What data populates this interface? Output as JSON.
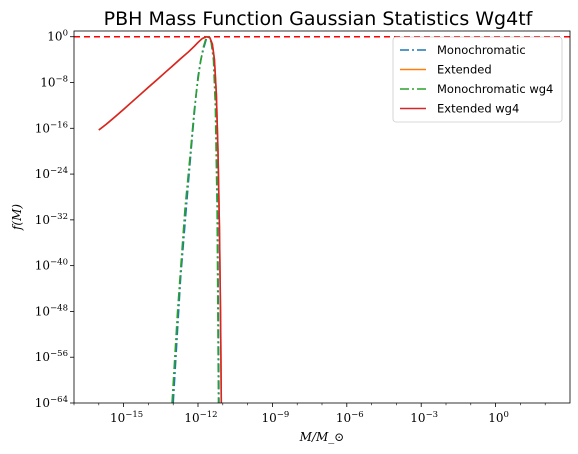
{
  "chart_data": {
    "type": "line",
    "title": "PBH Mass Function Gaussian Statistics Wg4tf",
    "xlabel": "M/M_⊙",
    "ylabel": "f(M)",
    "xscale": "log",
    "yscale": "log",
    "xlim": [
      1e-17,
      1000.0
    ],
    "ylim": [
      1e-64,
      10.0
    ],
    "xticks": [
      {
        "base": "10",
        "exp": "−15",
        "value": 1e-15
      },
      {
        "base": "10",
        "exp": "−12",
        "value": 1e-12
      },
      {
        "base": "10",
        "exp": "−9",
        "value": 1e-09
      },
      {
        "base": "10",
        "exp": "−6",
        "value": 1e-06
      },
      {
        "base": "10",
        "exp": "−3",
        "value": 0.001
      },
      {
        "base": "10",
        "exp": "0",
        "value": 1
      }
    ],
    "yticks": [
      {
        "base": "10",
        "exp": "0",
        "value": 1
      },
      {
        "base": "10",
        "exp": "−8",
        "value": 1e-08
      },
      {
        "base": "10",
        "exp": "−16",
        "value": 1e-16
      },
      {
        "base": "10",
        "exp": "−24",
        "value": 1e-24
      },
      {
        "base": "10",
        "exp": "−32",
        "value": 1e-32
      },
      {
        "base": "10",
        "exp": "−40",
        "value": 1e-40
      },
      {
        "base": "10",
        "exp": "−48",
        "value": 1e-48
      },
      {
        "base": "10",
        "exp": "−56",
        "value": 1e-56
      },
      {
        "base": "10",
        "exp": "−64",
        "value": 1e-64
      }
    ],
    "hline": {
      "y": 1,
      "color": "#ff0000",
      "style": "dashed"
    },
    "legend_position": "top-right",
    "grid": false,
    "series": [
      {
        "name": "Monochromatic",
        "color": "#1f77b4",
        "style": "dashdot",
        "x": [
          1e-13,
          2e-13,
          4e-13,
          6e-13,
          8e-13,
          1e-12,
          1.3e-12,
          1.7e-12,
          2.2e-12,
          2.8e-12,
          3.5e-12,
          4.3e-12,
          5.2e-12,
          6.2e-12,
          7e-12
        ],
        "y": [
          1e-64,
          1e-42,
          1e-26,
          1e-17,
          1e-11,
          1e-07,
          0.0001,
          0.01,
          0.5,
          1,
          0.1,
          0.0001,
          1e-12,
          1e-30,
          1e-64
        ]
      },
      {
        "name": "Extended",
        "color": "#ff7f0e",
        "style": "solid",
        "x": [
          1e-16,
          2e-16,
          5e-16,
          1e-15,
          2e-15,
          5e-15,
          1e-14,
          2e-14,
          5e-14,
          1e-13,
          2e-13,
          4e-13,
          7e-13,
          1e-12,
          1.5e-12,
          2.2e-12,
          3e-12,
          3.8e-12,
          4.6e-12,
          5.5e-12,
          6.4e-12,
          7.3e-12,
          8.1e-12,
          8.7e-12
        ],
        "y": [
          5e-17,
          5e-16,
          1.5e-14,
          2e-13,
          3e-12,
          1e-10,
          1.5e-09,
          2e-08,
          7e-07,
          1e-05,
          0.00015,
          0.002,
          0.02,
          0.1,
          0.5,
          1,
          0.7,
          0.05,
          0.0001,
          1e-10,
          1e-20,
          1e-33,
          1e-48,
          1e-64
        ]
      },
      {
        "name": "Monochromatic wg4",
        "color": "#2ca02c",
        "style": "dashdot",
        "x": [
          9e-14,
          1.5e-13,
          3e-13,
          5e-13,
          7e-13,
          9e-13,
          1.2e-12,
          1.6e-12,
          2.1e-12,
          2.7e-12,
          3.4e-12,
          4.2e-12,
          5e-12,
          5.9e-12,
          6.7e-12
        ],
        "y": [
          1e-64,
          1e-48,
          1e-30,
          1e-20,
          1e-13,
          1e-09,
          1e-05,
          0.01,
          0.5,
          1,
          0.1,
          0.0001,
          1e-12,
          1e-30,
          1e-64
        ]
      },
      {
        "name": "Extended wg4",
        "color": "#d62728",
        "style": "solid",
        "x": [
          1e-16,
          2e-16,
          5e-16,
          1e-15,
          2e-15,
          5e-15,
          1e-14,
          2e-14,
          5e-14,
          1e-13,
          2e-13,
          4e-13,
          7e-13,
          1e-12,
          1.5e-12,
          2.2e-12,
          3e-12,
          3.8e-12,
          4.6e-12,
          5.5e-12,
          6.4e-12,
          7.3e-12,
          8.1e-12,
          8.7e-12
        ],
        "y": [
          5e-17,
          5e-16,
          1.5e-14,
          2e-13,
          3e-12,
          1e-10,
          1.5e-09,
          2e-08,
          7e-07,
          1e-05,
          0.00015,
          0.002,
          0.02,
          0.1,
          0.5,
          1,
          0.7,
          0.05,
          0.0001,
          1e-10,
          1e-20,
          1e-33,
          1e-48,
          1e-64
        ]
      }
    ]
  }
}
